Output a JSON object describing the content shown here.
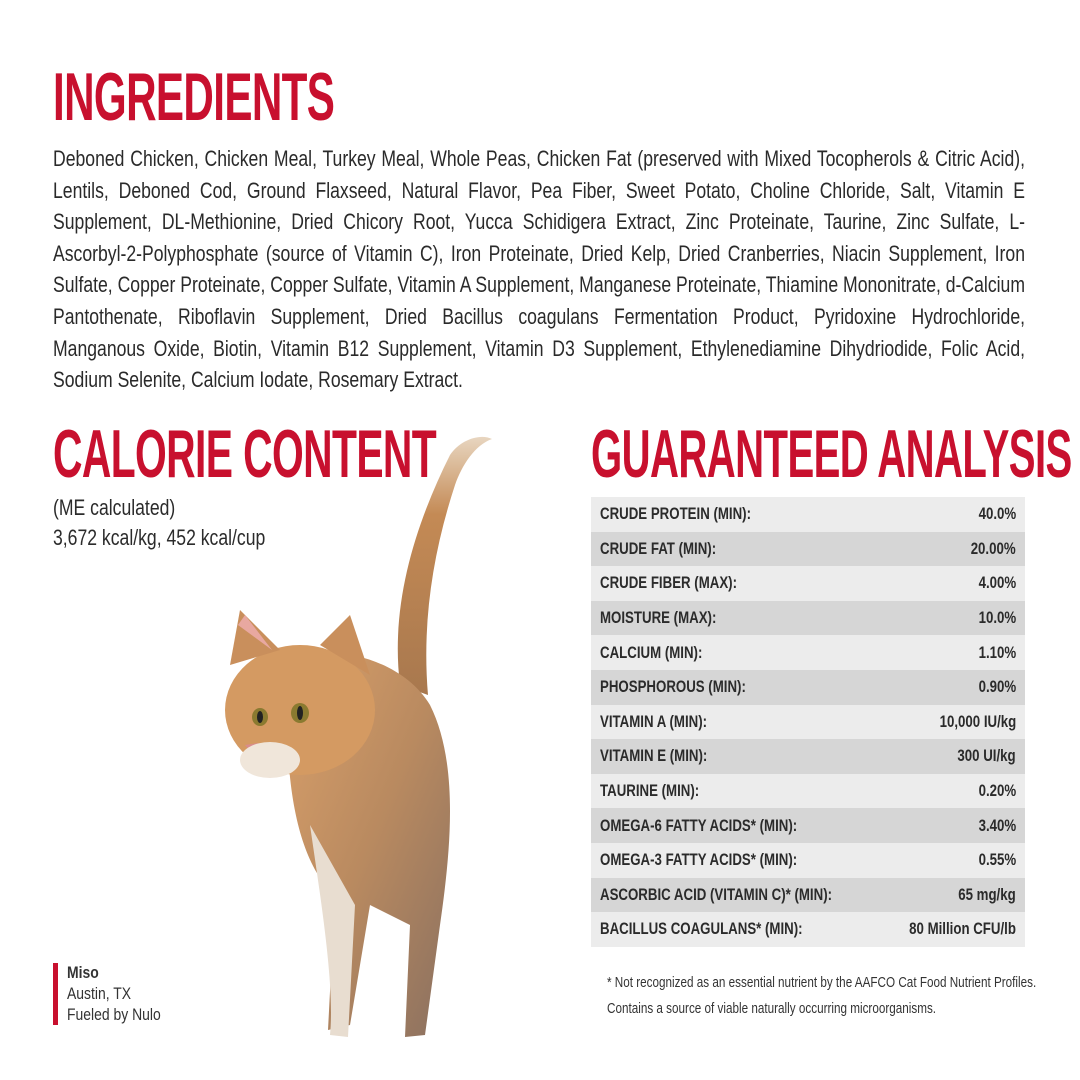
{
  "ingredients": {
    "heading": "INGREDIENTS",
    "text": "Deboned Chicken, Chicken Meal, Turkey Meal, Whole Peas, Chicken Fat (preserved with Mixed Tocopherols & Citric Acid), Lentils, Deboned Cod, Ground Flaxseed, Natural Flavor, Pea Fiber, Sweet Potato, Choline Chloride, Salt, Vitamin E Supplement, DL-Methionine, Dried Chicory Root, Yucca Schidigera Extract, Zinc Proteinate, Taurine, Zinc Sulfate, L-Ascorbyl-2-Polyphosphate (source of Vitamin C), Iron Proteinate, Dried Kelp, Dried Cranberries, Niacin Supplement, Iron Sulfate, Copper Proteinate, Copper Sulfate, Vitamin A Supplement, Manganese Proteinate, Thiamine Mononitrate, d-Calcium Pantothenate, Riboflavin Supplement, Dried Bacillus coagulans Fermentation Product, Pyridoxine Hydrochloride, Manganous Oxide, Biotin, Vitamin B12 Supplement, Vitamin D3 Supplement, Ethylenediamine Dihydriodide, Folic Acid, Sodium Selenite, Calcium Iodate, Rosemary Extract."
  },
  "calorie": {
    "heading": "CALORIE CONTENT",
    "line1": "(ME calculated)",
    "line2": "3,672 kcal/kg, 452 kcal/cup"
  },
  "analysis": {
    "heading": "GUARANTEED ANALYSIS",
    "rows": [
      {
        "label": "CRUDE PROTEIN (MIN):",
        "value": "40.0%"
      },
      {
        "label": "CRUDE FAT (MIN):",
        "value": "20.00%"
      },
      {
        "label": "CRUDE FIBER (MAX):",
        "value": "4.00%"
      },
      {
        "label": "MOISTURE (MAX):",
        "value": "10.0%"
      },
      {
        "label": "CALCIUM (MIN):",
        "value": "1.10%"
      },
      {
        "label": "PHOSPHOROUS (MIN):",
        "value": "0.90%"
      },
      {
        "label": "VITAMIN A (MIN):",
        "value": "10,000 IU/kg"
      },
      {
        "label": "VITAMIN E (MIN):",
        "value": "300 UI/kg"
      },
      {
        "label": "TAURINE (MIN):",
        "value": "0.20%"
      },
      {
        "label": "OMEGA-6 FATTY ACIDS* (MIN):",
        "value": "3.40%"
      },
      {
        "label": "OMEGA-3 FATTY ACIDS* (MIN):",
        "value": "0.55%"
      },
      {
        "label": "ASCORBIC ACID (VITAMIN C)* (MIN):",
        "value": "65 mg/kg"
      },
      {
        "label": "BACILLUS COAGULANS* (MIN):",
        "value": "80 Million CFU/lb"
      }
    ],
    "footnote1": "* Not recognized as an essential nutrient by the AAFCO Cat Food Nutrient Profiles.",
    "footnote2": "Contains a source of viable naturally occurring microorganisms."
  },
  "caption": {
    "name": "Miso",
    "location": "Austin, TX",
    "tagline": "Fueled by Nulo"
  },
  "colors": {
    "accent": "#c8102e",
    "row_light": "#ececec",
    "row_dark": "#d6d6d6"
  }
}
